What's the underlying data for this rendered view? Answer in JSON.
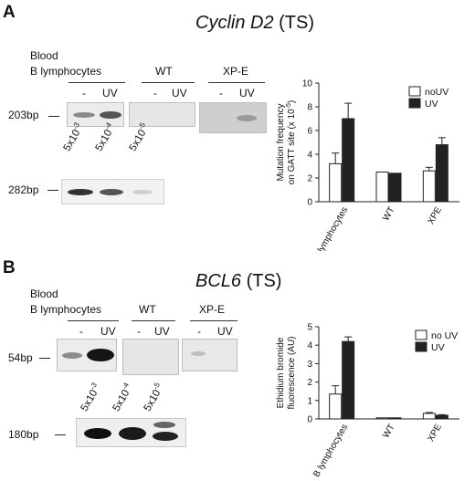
{
  "panelA": {
    "letter": "A",
    "title_gene": "Cyclin D2",
    "title_suffix": " (TS)",
    "blood_label": "Blood",
    "groups": [
      "B lymphocytes",
      "WT",
      "XP-E"
    ],
    "lane_minus": "-",
    "lane_uv": "UV",
    "gel1_bp": "203bp",
    "gel2_bp": "282bp",
    "dilutions": [
      "5x10",
      "5x10",
      "5x10"
    ],
    "dilution_exponents": [
      "-3",
      "-4",
      "-5"
    ]
  },
  "panelB": {
    "letter": "B",
    "title_gene": "BCL6",
    "title_suffix": " (TS)",
    "blood_label": "Blood",
    "groups": [
      "B lymphocytes",
      "WT",
      "XP-E"
    ],
    "lane_minus": "-",
    "lane_uv": "UV",
    "gel1_bp": "54bp",
    "gel2_bp": "180bp",
    "dilutions": [
      "5x10",
      "5x10",
      "5x10"
    ],
    "dilution_exponents": [
      "-3",
      "-4",
      "-5"
    ]
  },
  "chart_data": [
    {
      "type": "bar",
      "categories": [
        "B lymphocytes",
        "WT",
        "XPE"
      ],
      "series": [
        {
          "name": "noUV",
          "values": [
            3.2,
            2.5,
            2.6
          ],
          "errors": [
            0.9,
            0,
            0.3
          ],
          "color": "#ffffff"
        },
        {
          "name": "UV",
          "values": [
            7.0,
            2.4,
            4.8
          ],
          "errors": [
            1.3,
            0,
            0.6
          ],
          "color": "#222222"
        }
      ],
      "ylabel_line1": "Mutation frequency",
      "ylabel_line2": "on GATT site (x 10",
      "ylabel_exp": "-5",
      "ylabel_end": ")",
      "ylim": [
        0,
        10
      ],
      "yticks": [
        0,
        2,
        4,
        6,
        8,
        10
      ],
      "legend_position": "top-right"
    },
    {
      "type": "bar",
      "categories": [
        "B lymphocytes",
        "WT",
        "XPE"
      ],
      "series": [
        {
          "name": "no UV",
          "values": [
            1.35,
            0.05,
            0.3
          ],
          "errors": [
            0.45,
            0,
            0.05
          ],
          "color": "#ffffff"
        },
        {
          "name": "UV",
          "values": [
            4.2,
            0.05,
            0.2
          ],
          "errors": [
            0.25,
            0,
            0.03
          ],
          "color": "#222222"
        }
      ],
      "ylabel_line1": "Ethidium bromide",
      "ylabel_line2": "fluorescence (AU)",
      "ylim": [
        0,
        5
      ],
      "yticks": [
        0,
        1,
        2,
        3,
        4,
        5
      ],
      "legend_position": "top-right"
    }
  ]
}
